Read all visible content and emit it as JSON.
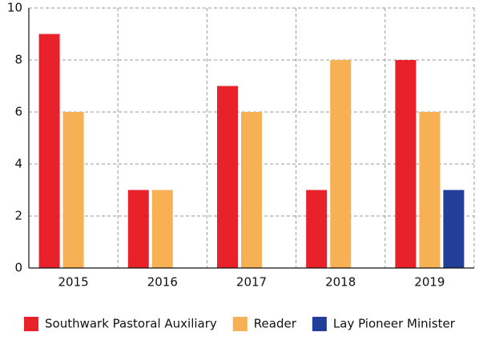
{
  "chart_data": {
    "type": "bar",
    "categories": [
      "2015",
      "2016",
      "2017",
      "2018",
      "2019"
    ],
    "series": [
      {
        "name": "Southwark Pastoral Auxiliary",
        "color": "#e8212b",
        "values": [
          9,
          3,
          7,
          3,
          8
        ]
      },
      {
        "name": "Reader",
        "color": "#f7b054",
        "values": [
          6,
          3,
          6,
          8,
          6
        ]
      },
      {
        "name": "Lay Pioneer Minister",
        "color": "#213f98",
        "values": [
          0,
          0,
          0,
          0,
          3
        ]
      }
    ],
    "ylim": [
      0,
      10
    ],
    "yticks": [
      0,
      2,
      4,
      6,
      8,
      10
    ],
    "grid": true,
    "legend": "bottom"
  }
}
